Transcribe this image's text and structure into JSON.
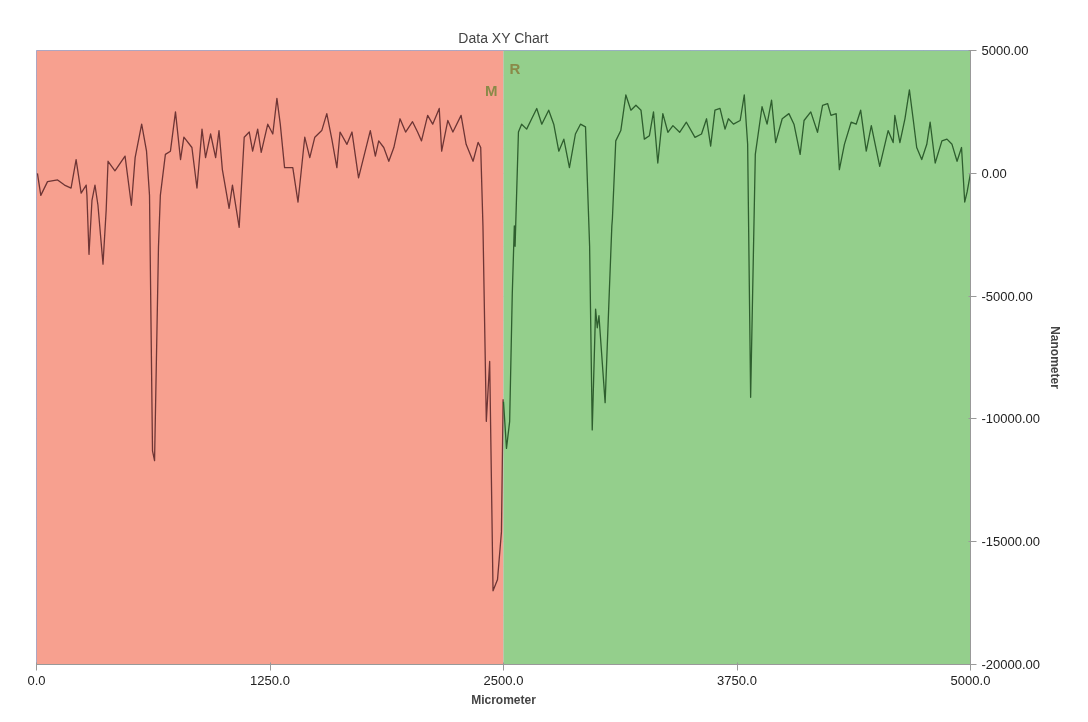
{
  "chart_data": {
    "type": "line",
    "title": "Data XY Chart",
    "xlabel": "Micrometer",
    "ylabel": "Nanometer",
    "xlim": [
      0,
      5000
    ],
    "ylim": [
      -20000,
      5000
    ],
    "xticks": [
      {
        "value": 0,
        "label": "0.0"
      },
      {
        "value": 1250,
        "label": "1250.0"
      },
      {
        "value": 2500,
        "label": "2500.0"
      },
      {
        "value": 3750,
        "label": "3750.0"
      },
      {
        "value": 5000,
        "label": "5000.0"
      }
    ],
    "yticks": [
      {
        "value": -20000,
        "label": "-20000.00"
      },
      {
        "value": -15000,
        "label": "-15000.00"
      },
      {
        "value": -10000,
        "label": "-10000.00"
      },
      {
        "value": -5000,
        "label": "-5000.00"
      },
      {
        "value": 0,
        "label": "0.00"
      },
      {
        "value": 5000,
        "label": "5000.00"
      }
    ],
    "grid": true,
    "marker": "none",
    "line_style": "solid",
    "bands": [
      {
        "axis": "x",
        "from": 0,
        "to": 2500,
        "label": "M",
        "color": "#f7a08f"
      },
      {
        "axis": "x",
        "from": 2500,
        "to": 5000,
        "label": "R",
        "color": "#94cf8c"
      }
    ],
    "series": [
      {
        "color": "#6e3535",
        "x": [
          5,
          23,
          59,
          113,
          150,
          185,
          212,
          239,
          266,
          270,
          281,
          297,
          313,
          329,
          356,
          373,
          383,
          420,
          474,
          508,
          528,
          563,
          589,
          605,
          621,
          632,
          653,
          663,
          690,
          717,
          744,
          771,
          789,
          832,
          859,
          886,
          905,
          932,
          959,
          977,
          995,
          1031,
          1049,
          1085,
          1112,
          1139,
          1157,
          1184,
          1203,
          1238,
          1265,
          1287,
          1305,
          1328,
          1372,
          1400,
          1436,
          1463,
          1490,
          1527,
          1554,
          1581,
          1608,
          1625,
          1662,
          1689,
          1724,
          1787,
          1814,
          1832,
          1859,
          1886,
          1913,
          1946,
          1976,
          2013,
          2040,
          2061,
          2094,
          2121,
          2156,
          2169,
          2202,
          2229,
          2273,
          2300,
          2337,
          2364,
          2378,
          2390,
          2408,
          2426,
          2444,
          2468,
          2489,
          2498
        ],
        "values": [
          0,
          -900,
          -340,
          -270,
          -480,
          -600,
          560,
          -810,
          -480,
          -900,
          -3300,
          -1100,
          -480,
          -1300,
          -3700,
          -1500,
          490,
          100,
          700,
          -1300,
          640,
          2000,
          900,
          -900,
          -11300,
          -11700,
          -3000,
          -900,
          770,
          900,
          2500,
          560,
          1470,
          1050,
          -600,
          1800,
          640,
          1600,
          640,
          1740,
          150,
          -1430,
          -480,
          -2200,
          1470,
          1680,
          900,
          1800,
          850,
          2000,
          1600,
          3050,
          2000,
          230,
          230,
          -1170,
          1470,
          640,
          1470,
          1740,
          2430,
          1390,
          230,
          1680,
          1180,
          1680,
          -190,
          1740,
          700,
          1320,
          1050,
          490,
          1050,
          2220,
          1680,
          2100,
          1680,
          1320,
          2360,
          2000,
          2640,
          900,
          2150,
          1680,
          2360,
          1180,
          490,
          1260,
          1050,
          -2140,
          -10100,
          -7660,
          -17000,
          -16540,
          -14600,
          -9200
        ]
      },
      {
        "color": "#2e5e2e",
        "x": [
          2500,
          2516,
          2533,
          2547,
          2558,
          2562,
          2580,
          2597,
          2624,
          2651,
          2678,
          2705,
          2742,
          2769,
          2796,
          2823,
          2853,
          2885,
          2912,
          2939,
          2961,
          2975,
          2993,
          3002,
          3011,
          3044,
          3066,
          3080,
          3083,
          3101,
          3128,
          3155,
          3182,
          3209,
          3236,
          3254,
          3281,
          3303,
          3326,
          3353,
          3380,
          3407,
          3443,
          3479,
          3525,
          3560,
          3587,
          3609,
          3632,
          3659,
          3686,
          3704,
          3731,
          3767,
          3789,
          3807,
          3823,
          3848,
          3884,
          3911,
          3935,
          3957,
          3992,
          4028,
          4055,
          4088,
          4109,
          4145,
          4181,
          4208,
          4235,
          4253,
          4281,
          4298,
          4325,
          4361,
          4388,
          4412,
          4442,
          4469,
          4514,
          4559,
          4586,
          4595,
          4622,
          4649,
          4673,
          4694,
          4712,
          4739,
          4766,
          4784,
          4811,
          4847,
          4874,
          4901,
          4928,
          4952,
          4969,
          4982,
          5000
        ],
        "values": [
          -9300,
          -11200,
          -10100,
          -4900,
          -2140,
          -2970,
          1680,
          2000,
          1800,
          2220,
          2640,
          2000,
          2570,
          2000,
          900,
          1390,
          230,
          1600,
          2000,
          1890,
          -2970,
          -10450,
          -5530,
          -6290,
          -5800,
          -9340,
          -4910,
          -2140,
          -1850,
          1320,
          1740,
          3190,
          2570,
          2770,
          2570,
          1390,
          1530,
          2500,
          420,
          2430,
          1670,
          1940,
          1670,
          2080,
          1460,
          1600,
          2220,
          1110,
          2570,
          2640,
          1800,
          2220,
          2000,
          2150,
          3190,
          1180,
          -9120,
          770,
          2710,
          2000,
          2980,
          1250,
          2220,
          2430,
          2000,
          770,
          2150,
          2500,
          1670,
          2770,
          2840,
          2360,
          2430,
          150,
          1180,
          2080,
          2000,
          2570,
          900,
          1940,
          280,
          1740,
          1250,
          2360,
          1250,
          2220,
          3400,
          2150,
          1050,
          560,
          1180,
          2080,
          420,
          1320,
          1390,
          1180,
          490,
          1050,
          -1170,
          -760,
          10
        ]
      }
    ]
  }
}
